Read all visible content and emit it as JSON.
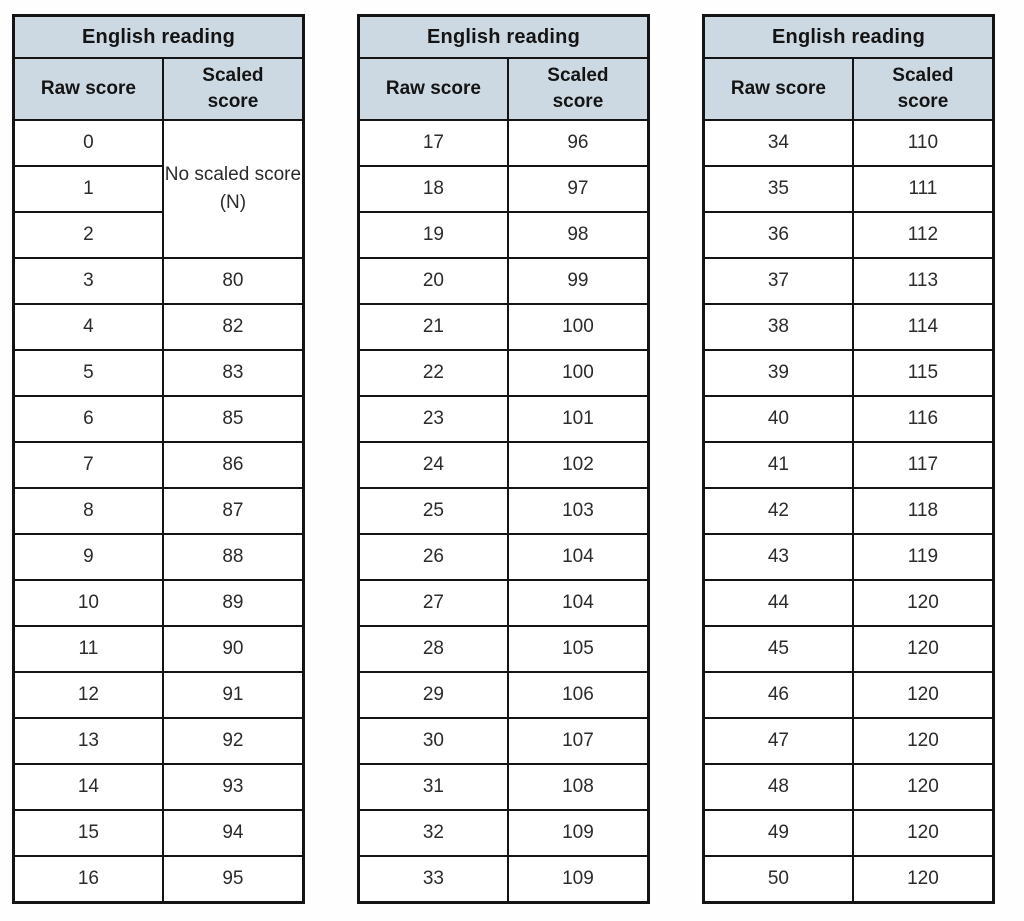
{
  "colors": {
    "header_bg": "#cdd9e2",
    "border": "#141414",
    "text": "#2b2b2e"
  },
  "tables": [
    {
      "title": "English reading",
      "col1": "Raw score",
      "col2": "Scaled score",
      "merged": {
        "raw": [
          "0",
          "1",
          "2"
        ],
        "scaled": "No scaled score (N)"
      },
      "rows": [
        [
          "3",
          "80"
        ],
        [
          "4",
          "82"
        ],
        [
          "5",
          "83"
        ],
        [
          "6",
          "85"
        ],
        [
          "7",
          "86"
        ],
        [
          "8",
          "87"
        ],
        [
          "9",
          "88"
        ],
        [
          "10",
          "89"
        ],
        [
          "11",
          "90"
        ],
        [
          "12",
          "91"
        ],
        [
          "13",
          "92"
        ],
        [
          "14",
          "93"
        ],
        [
          "15",
          "94"
        ],
        [
          "16",
          "95"
        ]
      ]
    },
    {
      "title": "English reading",
      "col1": "Raw score",
      "col2": "Scaled score",
      "rows": [
        [
          "17",
          "96"
        ],
        [
          "18",
          "97"
        ],
        [
          "19",
          "98"
        ],
        [
          "20",
          "99"
        ],
        [
          "21",
          "100"
        ],
        [
          "22",
          "100"
        ],
        [
          "23",
          "101"
        ],
        [
          "24",
          "102"
        ],
        [
          "25",
          "103"
        ],
        [
          "26",
          "104"
        ],
        [
          "27",
          "104"
        ],
        [
          "28",
          "105"
        ],
        [
          "29",
          "106"
        ],
        [
          "30",
          "107"
        ],
        [
          "31",
          "108"
        ],
        [
          "32",
          "109"
        ],
        [
          "33",
          "109"
        ]
      ]
    },
    {
      "title": "English reading",
      "col1": "Raw score",
      "col2": "Scaled score",
      "rows": [
        [
          "34",
          "110"
        ],
        [
          "35",
          "111"
        ],
        [
          "36",
          "112"
        ],
        [
          "37",
          "113"
        ],
        [
          "38",
          "114"
        ],
        [
          "39",
          "115"
        ],
        [
          "40",
          "116"
        ],
        [
          "41",
          "117"
        ],
        [
          "42",
          "118"
        ],
        [
          "43",
          "119"
        ],
        [
          "44",
          "120"
        ],
        [
          "45",
          "120"
        ],
        [
          "46",
          "120"
        ],
        [
          "47",
          "120"
        ],
        [
          "48",
          "120"
        ],
        [
          "49",
          "120"
        ],
        [
          "50",
          "120"
        ]
      ]
    }
  ]
}
